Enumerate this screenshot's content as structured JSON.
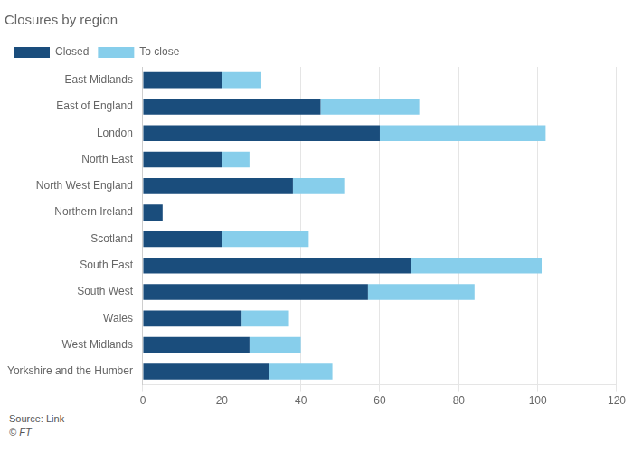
{
  "chart_data": {
    "type": "bar",
    "orientation": "horizontal",
    "stacked": true,
    "title": "Closures by region",
    "categories": [
      "East Midlands",
      "East of England",
      "London",
      "North East",
      "North West England",
      "Northern Ireland",
      "Scotland",
      "South East",
      "South West",
      "Wales",
      "West Midlands",
      "Yorkshire and the Humber"
    ],
    "series": [
      {
        "name": "Closed",
        "color": "#1a4d7c",
        "values": [
          20,
          45,
          60,
          20,
          38,
          5,
          20,
          68,
          57,
          25,
          27,
          32
        ]
      },
      {
        "name": "To close",
        "color": "#87ceeb",
        "values": [
          10,
          25,
          42,
          7,
          13,
          0,
          22,
          33,
          27,
          12,
          13,
          16
        ]
      }
    ],
    "xlim": [
      0,
      120
    ],
    "xticks": [
      0,
      20,
      40,
      60,
      80,
      100,
      120
    ],
    "grid": true,
    "legend": "top",
    "annotations": [
      "Source: Link",
      "© FT"
    ]
  }
}
